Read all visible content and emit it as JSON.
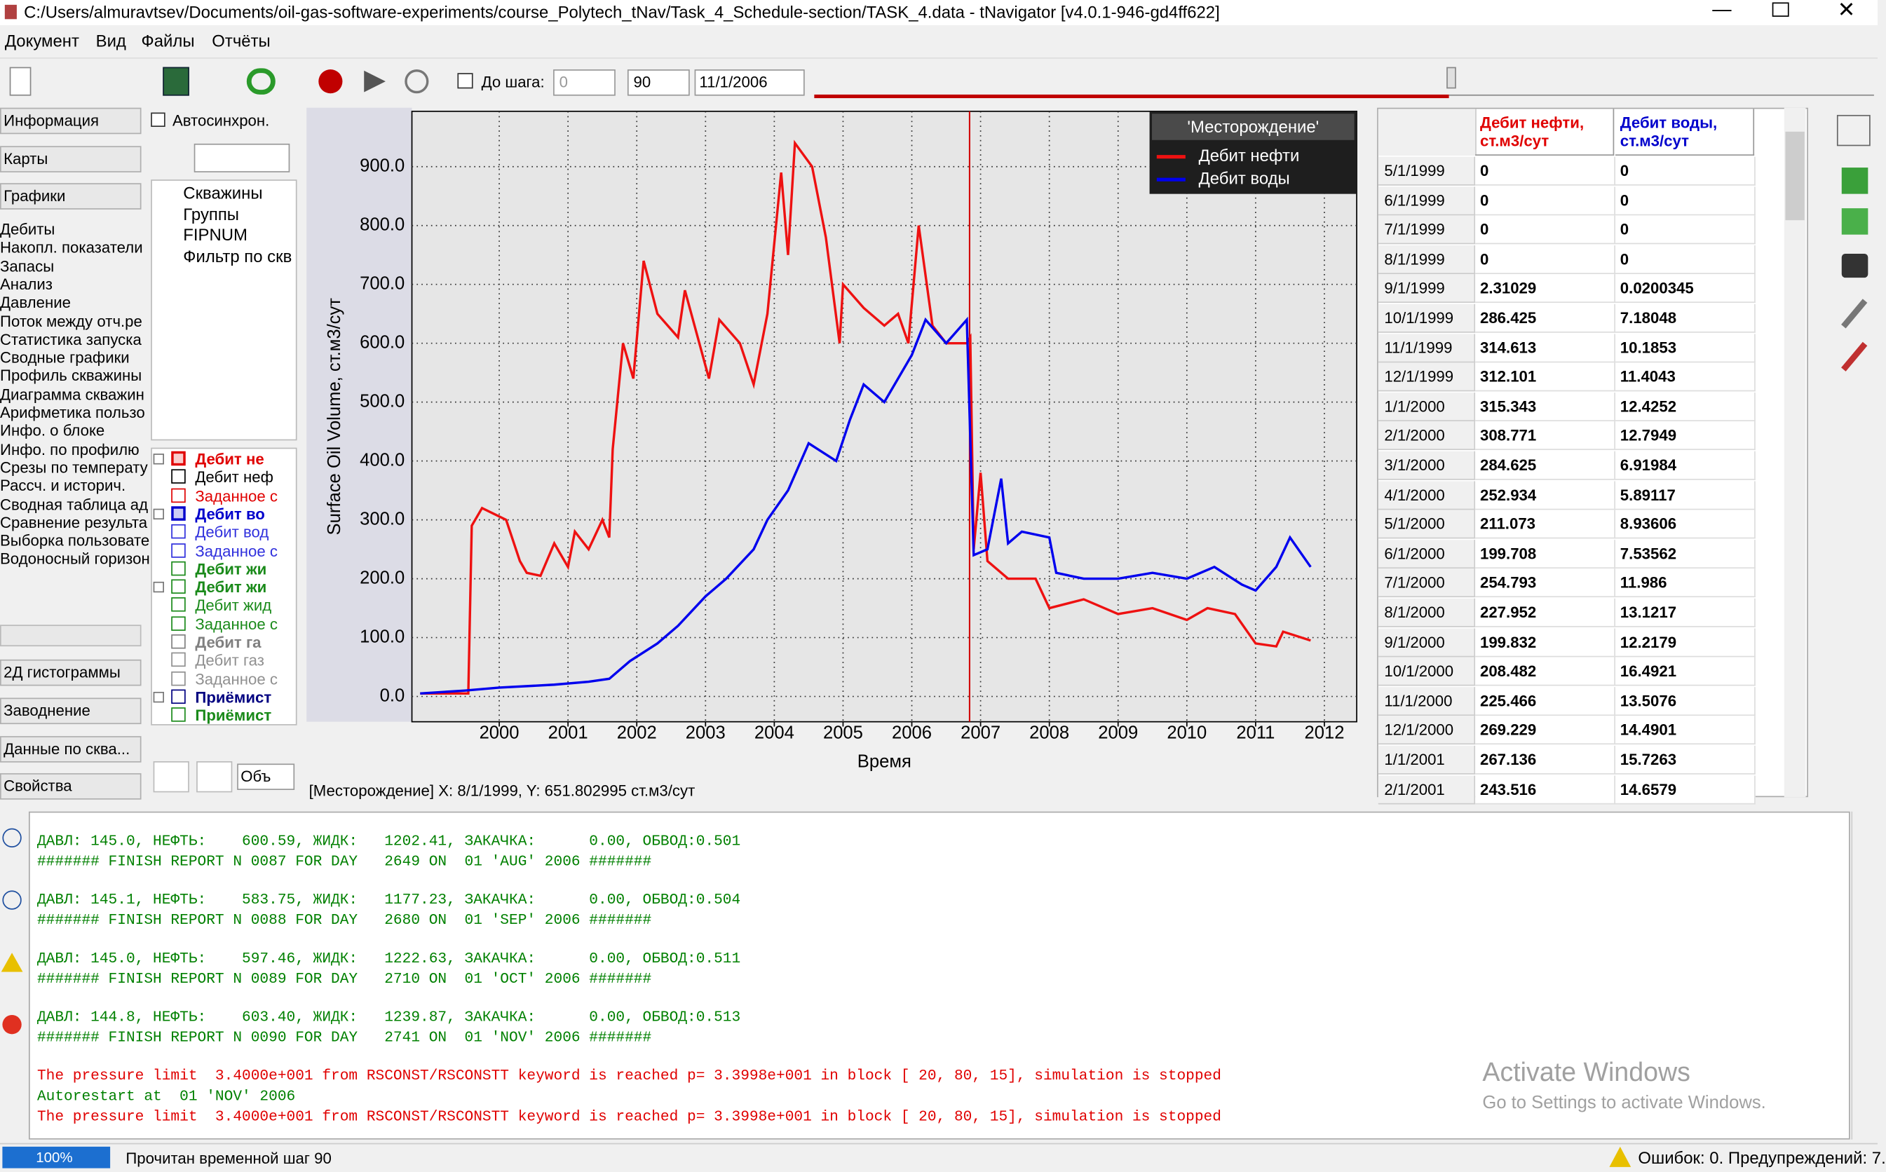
{
  "window": {
    "title": "C:/Users/almuravtsev/Documents/oil-gas-software-experiments/course_Polytech_tNav/Task_4_Schedule-section/TASK_4.data - tNavigator [v4.0.1-946-gd4ff622]"
  },
  "menu": [
    "Документ",
    "Вид",
    "Файлы",
    "Отчёты"
  ],
  "toolbar": {
    "step_label": "До шага:",
    "step_value": "0",
    "step_spin": "90",
    "date": "11/1/2006"
  },
  "left_panel": {
    "tabs_top": [
      "Информация",
      "Карты",
      "Графики"
    ],
    "items": [
      "Дебиты",
      "Накопл. показатели",
      "Запасы",
      "Анализ",
      "Давление",
      "Поток между отч.ре",
      "Статистика запуска",
      "Сводные графики",
      "Профиль скважины",
      "Диаграмма скважин",
      "Арифметика пользо",
      "Инфо. о блоке",
      "Инфо. по профилю",
      "Срезы по температу",
      "Рассч. и историч.",
      "Сводная таблица ад",
      "Сравнение результа",
      "Выборка пользовате",
      "Водоносный горизон"
    ],
    "tabs_bottom": [
      "2Д гистограммы",
      "Заводнение",
      "Данные по сква...",
      "Свойства"
    ]
  },
  "tree_panel": {
    "autosync": "Автосинхрон.",
    "tree": [
      "Скважины",
      "Группы",
      "FIPNUM",
      "Фильтр по скв"
    ],
    "series_list": [
      {
        "text": "Дебит не",
        "color": "#e00000",
        "bold": true,
        "checked": true,
        "expandable": true
      },
      {
        "text": "Дебит неф",
        "color": "#000000",
        "bold": false,
        "checked": false,
        "expandable": false
      },
      {
        "text": "Заданное с",
        "color": "#e00000",
        "bold": false,
        "checked": false,
        "expandable": false
      },
      {
        "text": "Дебит во",
        "color": "#0000cc",
        "bold": true,
        "checked": true,
        "expandable": true
      },
      {
        "text": "Дебит вод",
        "color": "#3030dd",
        "bold": false,
        "checked": false,
        "expandable": false
      },
      {
        "text": "Заданное с",
        "color": "#3030dd",
        "bold": false,
        "checked": false,
        "expandable": false
      },
      {
        "text": "Дебит жи",
        "color": "#1a8a1a",
        "bold": true,
        "checked": false,
        "expandable": false
      },
      {
        "text": "Дебит жи",
        "color": "#1a8a1a",
        "bold": true,
        "checked": false,
        "expandable": true
      },
      {
        "text": "Дебит жид",
        "color": "#1a8a1a",
        "bold": false,
        "checked": false,
        "expandable": false
      },
      {
        "text": "Заданное с",
        "color": "#1a8a1a",
        "bold": false,
        "checked": false,
        "expandable": false
      },
      {
        "text": "Дебит га",
        "color": "#808080",
        "bold": true,
        "checked": false,
        "expandable": false
      },
      {
        "text": "Дебит газ",
        "color": "#909090",
        "bold": false,
        "checked": false,
        "expandable": false
      },
      {
        "text": "Заданное с",
        "color": "#909090",
        "bold": false,
        "checked": false,
        "expandable": false
      },
      {
        "text": "Приёмист",
        "color": "#000080",
        "bold": true,
        "checked": false,
        "expandable": true
      },
      {
        "text": "Приёмист",
        "color": "#1a8a1a",
        "bold": true,
        "checked": false,
        "expandable": false
      }
    ],
    "combo": "Объ"
  },
  "chart_data": {
    "type": "line",
    "legend_title": "'Месторождение'",
    "xlabel": "Время",
    "ylabel": "Surface Oil Volume, ст.м3/сут",
    "xlim": [
      1998.73,
      2012.47
    ],
    "ylim": [
      -43,
      994
    ],
    "xticks": [
      2000,
      2001,
      2002,
      2003,
      2004,
      2005,
      2006,
      2007,
      2008,
      2009,
      2010,
      2011,
      2012
    ],
    "yticks": [
      {
        "value": 0,
        "label": "0.0"
      },
      {
        "value": 100,
        "label": "100.0"
      },
      {
        "value": 200,
        "label": "200.0"
      },
      {
        "value": 300,
        "label": "300.0"
      },
      {
        "value": 400,
        "label": "400.0"
      },
      {
        "value": 500,
        "label": "500.0"
      },
      {
        "value": 600,
        "label": "600.0"
      },
      {
        "value": 700,
        "label": "700.0"
      },
      {
        "value": 800,
        "label": "800.0"
      },
      {
        "value": 900,
        "label": "900.0"
      }
    ],
    "grid": true,
    "legend": "upper right",
    "cursor_x": 2006.84,
    "cursor_color": "#d00000",
    "series": [
      {
        "name": "Дебит нефти",
        "color": "#ee1111",
        "x": [
          1998.85,
          1999.55,
          1999.6,
          1999.75,
          2000.1,
          2000.3,
          2000.4,
          2000.6,
          2000.8,
          2001.0,
          2001.1,
          2001.3,
          2001.5,
          2001.6,
          2001.65,
          2001.8,
          2001.95,
          2002.1,
          2002.3,
          2002.6,
          2002.7,
          2003.05,
          2003.2,
          2003.5,
          2003.7,
          2003.9,
          2004.1,
          2004.2,
          2004.3,
          2004.55,
          2004.75,
          2004.95,
          2005.0,
          2005.3,
          2005.6,
          2005.8,
          2005.95,
          2006.1,
          2006.3,
          2006.5,
          2006.8,
          2006.85,
          2006.9,
          2007.0,
          2007.1,
          2007.4,
          2007.8,
          2008.0,
          2008.5,
          2009.0,
          2009.5,
          2010.0,
          2010.3,
          2010.7,
          2011.0,
          2011.3,
          2011.4,
          2011.8
        ],
        "values": [
          5,
          5,
          290,
          320,
          300,
          230,
          210,
          205,
          260,
          220,
          280,
          250,
          300,
          270,
          420,
          600,
          540,
          740,
          650,
          610,
          690,
          540,
          640,
          600,
          530,
          650,
          890,
          750,
          940,
          900,
          780,
          600,
          700,
          660,
          630,
          650,
          600,
          800,
          630,
          600,
          600,
          610,
          250,
          380,
          230,
          200,
          200,
          150,
          165,
          140,
          150,
          130,
          150,
          140,
          90,
          85,
          110,
          95
        ]
      },
      {
        "name": "Дебит воды",
        "color": "#0000ee",
        "x": [
          1998.85,
          1999.5,
          2000.0,
          2000.8,
          2001.3,
          2001.6,
          2001.9,
          2002.3,
          2002.6,
          2003.0,
          2003.3,
          2003.7,
          2003.9,
          2004.2,
          2004.5,
          2004.9,
          2005.1,
          2005.3,
          2005.6,
          2006.0,
          2006.2,
          2006.5,
          2006.8,
          2006.9,
          2007.1,
          2007.3,
          2007.4,
          2007.6,
          2008.0,
          2008.1,
          2008.5,
          2009.0,
          2009.5,
          2010.0,
          2010.4,
          2010.8,
          2011.0,
          2011.3,
          2011.5,
          2011.8
        ],
        "values": [
          5,
          10,
          15,
          20,
          25,
          30,
          60,
          90,
          120,
          170,
          200,
          250,
          300,
          350,
          430,
          400,
          470,
          530,
          500,
          580,
          640,
          600,
          640,
          240,
          250,
          370,
          260,
          280,
          270,
          210,
          200,
          200,
          210,
          200,
          220,
          190,
          180,
          220,
          270,
          220
        ]
      }
    ]
  },
  "chart_status": "[Месторождение] X: 8/1/1999, Y: 651.802995 ст.м3/сут",
  "table": {
    "headers": [
      {
        "text": "Дебит нефти, ст.м3/сут",
        "color": "#e00000"
      },
      {
        "text": "Дебит воды, ст.м3/сут",
        "color": "#0000cc"
      }
    ],
    "rows": [
      [
        "5/1/1999",
        "0",
        "0"
      ],
      [
        "6/1/1999",
        "0",
        "0"
      ],
      [
        "7/1/1999",
        "0",
        "0"
      ],
      [
        "8/1/1999",
        "0",
        "0"
      ],
      [
        "9/1/1999",
        "2.31029",
        "0.0200345"
      ],
      [
        "10/1/1999",
        "286.425",
        "7.18048"
      ],
      [
        "11/1/1999",
        "314.613",
        "10.1853"
      ],
      [
        "12/1/1999",
        "312.101",
        "11.4043"
      ],
      [
        "1/1/2000",
        "315.343",
        "12.4252"
      ],
      [
        "2/1/2000",
        "308.771",
        "12.7949"
      ],
      [
        "3/1/2000",
        "284.625",
        "6.91984"
      ],
      [
        "4/1/2000",
        "252.934",
        "5.89117"
      ],
      [
        "5/1/2000",
        "211.073",
        "8.93606"
      ],
      [
        "6/1/2000",
        "199.708",
        "7.53562"
      ],
      [
        "7/1/2000",
        "254.793",
        "11.986"
      ],
      [
        "8/1/2000",
        "227.952",
        "13.1217"
      ],
      [
        "9/1/2000",
        "199.832",
        "12.2179"
      ],
      [
        "10/1/2000",
        "208.482",
        "16.4921"
      ],
      [
        "11/1/2000",
        "225.466",
        "13.5076"
      ],
      [
        "12/1/2000",
        "269.229",
        "14.4901"
      ],
      [
        "1/1/2001",
        "267.136",
        "15.7263"
      ],
      [
        "2/1/2001",
        "243.516",
        "14.6579"
      ]
    ]
  },
  "log": {
    "blocks": [
      [
        {
          "text": "ДАВЛ: 145.0, НЕФТЬ:    600.59, ЖИДК:   1202.41, ЗАКАЧКА:      0.00, ОБВОД:0.501",
          "color": "#008000"
        },
        {
          "text": "####### FINISH REPORT N 0087 FOR DAY   2649 ON  01 'AUG' 2006 #######",
          "color": "#008000"
        }
      ],
      [
        {
          "text": "ДАВЛ: 145.1, НЕФТЬ:    583.75, ЖИДК:   1177.23, ЗАКАЧКА:      0.00, ОБВОД:0.504",
          "color": "#008000"
        },
        {
          "text": "####### FINISH REPORT N 0088 FOR DAY   2680 ON  01 'SEP' 2006 #######",
          "color": "#008000"
        }
      ],
      [
        {
          "text": "ДАВЛ: 145.0, НЕФТЬ:    597.46, ЖИДК:   1222.63, ЗАКАЧКА:      0.00, ОБВОД:0.511",
          "color": "#008000"
        },
        {
          "text": "####### FINISH REPORT N 0089 FOR DAY   2710 ON  01 'OCT' 2006 #######",
          "color": "#008000"
        }
      ],
      [
        {
          "text": "ДАВЛ: 144.8, НЕФТЬ:    603.40, ЖИДК:   1239.87, ЗАКАЧКА:      0.00, ОБВОД:0.513",
          "color": "#008000"
        },
        {
          "text": "####### FINISH REPORT N 0090 FOR DAY   2741 ON  01 'NOV' 2006 #######",
          "color": "#008000"
        }
      ],
      [
        {
          "text": "The pressure limit  3.4000e+001 from RSCONST/RSCONSTT keyword is reached p= 3.3998e+001 in block [ 20, 80, 15], simulation is stopped",
          "color": "#e00000"
        },
        {
          "text": "Autorestart at  01 'NOV' 2006",
          "color": "#008000"
        },
        {
          "text": "The pressure limit  3.4000e+001 from RSCONST/RSCONSTT keyword is reached p= 3.3998e+001 in block [ 20, 80, 15], simulation is stopped",
          "color": "#e00000"
        }
      ]
    ]
  },
  "watermark": {
    "title": "Activate Windows",
    "subtitle": "Go to Settings to activate Windows."
  },
  "statusbar": {
    "progress": "100%",
    "message": "Прочитан временной шаг 90",
    "errors": "Ошибок: 0. Предупреждений: 7."
  }
}
